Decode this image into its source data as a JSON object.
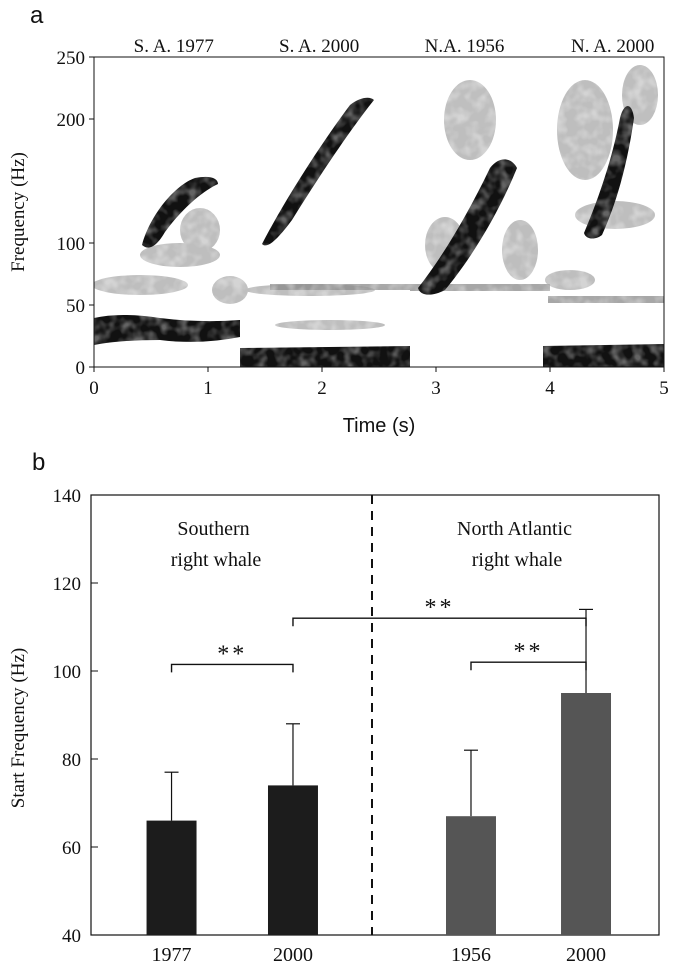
{
  "colors": {
    "southern": "#1c1c1c",
    "north_atlantic": "#555555",
    "spectrogram_ink": "#111111",
    "spectrogram_gray": "#8a8a8a",
    "axis": "#111111"
  },
  "chart_data": [
    {
      "panel_label": "a",
      "type": "heatmap",
      "title": "",
      "xlabel": "Time (s)",
      "ylabel": "Frequency (Hz)",
      "xlim": [
        0,
        5
      ],
      "ylim": [
        0,
        250
      ],
      "x_ticks": [
        "0",
        "1",
        "2",
        "3",
        "4",
        "5"
      ],
      "y_ticks": [
        "0",
        "50",
        "100",
        "200",
        "250"
      ],
      "annotations": [
        "S. A. 1977",
        "S. A. 2000",
        "N.A. 1956",
        "N. A. 2000"
      ],
      "calls": [
        {
          "label": "S. A. 1977",
          "t_start": 0.45,
          "t_end": 0.95,
          "f_start": 85,
          "f_end": 150
        },
        {
          "label": "S. A. 2000",
          "t_start": 1.5,
          "t_end": 2.45,
          "f_start": 90,
          "f_end": 225
        },
        {
          "label": "N.A. 1956",
          "t_start": 2.85,
          "t_end": 3.65,
          "f_start": 55,
          "f_end": 165
        },
        {
          "label": "N. A. 2000",
          "t_start": 4.4,
          "t_end": 4.7,
          "f_start": 90,
          "f_end": 225
        }
      ]
    },
    {
      "panel_label": "b",
      "type": "bar",
      "title": "",
      "xlabel": "",
      "ylabel": "Start Frequency (Hz)",
      "ylim": [
        40,
        140
      ],
      "y_ticks": [
        40,
        60,
        80,
        100,
        120,
        140
      ],
      "categories": [
        "1977",
        "2000",
        "1956",
        "2000"
      ],
      "values": [
        66,
        74,
        67,
        95
      ],
      "error_upper": [
        77,
        88,
        82,
        114
      ],
      "groups": [
        {
          "name": "Southern\nright whale",
          "lines": [
            "Southern",
            "right whale"
          ]
        },
        {
          "name": "North Atlantic\nright whale",
          "lines": [
            "North Atlantic",
            "right whale"
          ]
        }
      ],
      "significance": [
        {
          "from": 0,
          "to": 1,
          "label": "**",
          "y": 101.5
        },
        {
          "from": 1,
          "to": 3,
          "label": "**",
          "y": 112
        },
        {
          "from": 2,
          "to": 3,
          "label": "**",
          "y": 102
        }
      ]
    }
  ]
}
